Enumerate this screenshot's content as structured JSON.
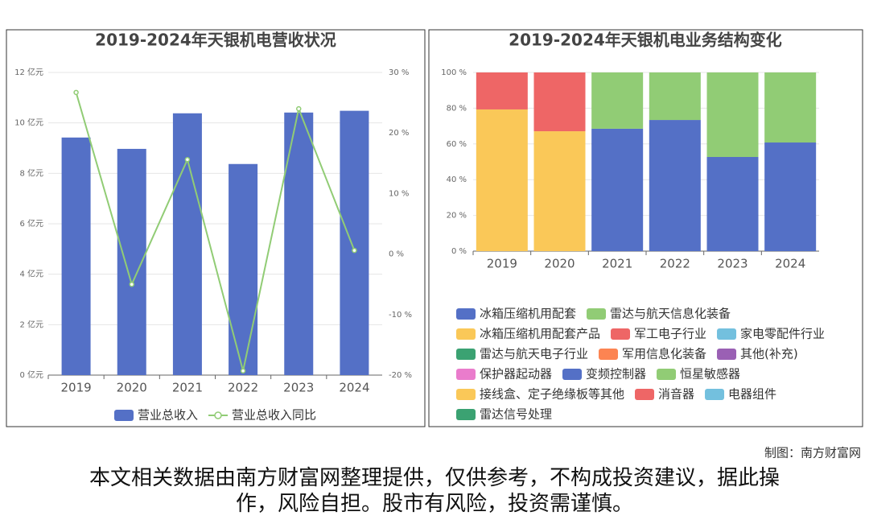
{
  "chart_data": [
    {
      "type": "bar",
      "title": "2019-2024年天银机电营收状况",
      "categories": [
        "2019",
        "2020",
        "2021",
        "2022",
        "2023",
        "2024"
      ],
      "series": [
        {
          "name": "营业总收入",
          "color": "#5470c6",
          "values": [
            9.42,
            8.97,
            10.38,
            8.37,
            10.41,
            10.48
          ]
        },
        {
          "name": "营业总收入同比",
          "color": "#91cc75",
          "type": "line",
          "axis": "y2",
          "values": [
            26.7,
            -5.0,
            15.6,
            -19.3,
            24.0,
            0.6
          ]
        }
      ],
      "ylim": [
        0,
        12
      ],
      "yticks": [
        {
          "value": 0,
          "label": "0 亿元"
        },
        {
          "value": 2,
          "label": "2 亿元"
        },
        {
          "value": 4,
          "label": "4 亿元"
        },
        {
          "value": 6,
          "label": "6 亿元"
        },
        {
          "value": 8,
          "label": "8 亿元"
        },
        {
          "value": 10,
          "label": "10 亿元"
        },
        {
          "value": 12,
          "label": "12 亿元"
        }
      ],
      "y2lim": [
        -20,
        30
      ],
      "y2ticks": [
        {
          "value": -20,
          "label": "-20 %"
        },
        {
          "value": -10,
          "label": "-10 %"
        },
        {
          "value": 0,
          "label": "0 %"
        },
        {
          "value": 10,
          "label": "10 %"
        },
        {
          "value": 20,
          "label": "20 %"
        },
        {
          "value": 30,
          "label": "30 %"
        }
      ],
      "grid": true
    },
    {
      "type": "stacked_bar",
      "title": "2019-2024年天银机电业务结构变化",
      "categories": [
        "2019",
        "2020",
        "2021",
        "2022",
        "2023",
        "2024"
      ],
      "series": [
        {
          "name": "冰箱压缩机用配套",
          "color": "#5470c6",
          "values": [
            null,
            null,
            68.5,
            73.4,
            52.7,
            60.8
          ]
        },
        {
          "name": "雷达与航天信息化装备",
          "color": "#91cc75",
          "values": [
            null,
            null,
            31.5,
            26.6,
            47.3,
            39.2
          ]
        },
        {
          "name": "冰箱压缩机用配套产品",
          "color": "#fac858",
          "values": [
            79.3,
            67.1,
            null,
            null,
            null,
            null
          ]
        },
        {
          "name": "军工电子行业",
          "color": "#ee6666",
          "values": [
            20.7,
            32.9,
            null,
            null,
            null,
            null
          ]
        },
        {
          "name": "家电零配件行业",
          "color": "#73c0de",
          "values": [
            null,
            null,
            null,
            null,
            null,
            null
          ]
        },
        {
          "name": "雷达与航天电子行业",
          "color": "#3ba272",
          "values": [
            null,
            null,
            null,
            null,
            null,
            null
          ]
        },
        {
          "name": "军用信息化装备",
          "color": "#fc8452",
          "values": [
            null,
            null,
            null,
            null,
            null,
            null
          ]
        },
        {
          "name": "其他(补充)",
          "color": "#9a60b4",
          "values": [
            null,
            null,
            null,
            null,
            null,
            null
          ]
        },
        {
          "name": "保护器起动器",
          "color": "#ea7ccc",
          "values": [
            null,
            null,
            null,
            null,
            null,
            null
          ]
        },
        {
          "name": "变频控制器",
          "color": "#5470c6",
          "values": [
            null,
            null,
            null,
            null,
            null,
            null
          ]
        },
        {
          "name": "恒星敏感器",
          "color": "#91cc75",
          "values": [
            null,
            null,
            null,
            null,
            null,
            null
          ]
        },
        {
          "name": "接线盒、定子绝缘板等其他",
          "color": "#fac858",
          "values": [
            null,
            null,
            null,
            null,
            null,
            null
          ]
        },
        {
          "name": "消音器",
          "color": "#ee6666",
          "values": [
            null,
            null,
            null,
            null,
            null,
            null
          ]
        },
        {
          "name": "电器组件",
          "color": "#73c0de",
          "values": [
            null,
            null,
            null,
            null,
            null,
            null
          ]
        },
        {
          "name": "雷达信号处理",
          "color": "#3ba272",
          "values": [
            null,
            null,
            null,
            null,
            null,
            null
          ]
        }
      ],
      "ylim": [
        0,
        100
      ],
      "yticks": [
        {
          "value": 0,
          "label": "0 %"
        },
        {
          "value": 20,
          "label": "20 %"
        },
        {
          "value": 40,
          "label": "40 %"
        },
        {
          "value": 60,
          "label": "60 %"
        },
        {
          "value": 80,
          "label": "80 %"
        },
        {
          "value": 100,
          "label": "100 %"
        }
      ],
      "grid": true
    }
  ],
  "credit": "制图：南方财富网",
  "disclaimer": "本文相关数据由南方财富网整理提供，仅供参考，不构成投资建议，据此操作，风险自担。股市有风险，投资需谨慎。"
}
